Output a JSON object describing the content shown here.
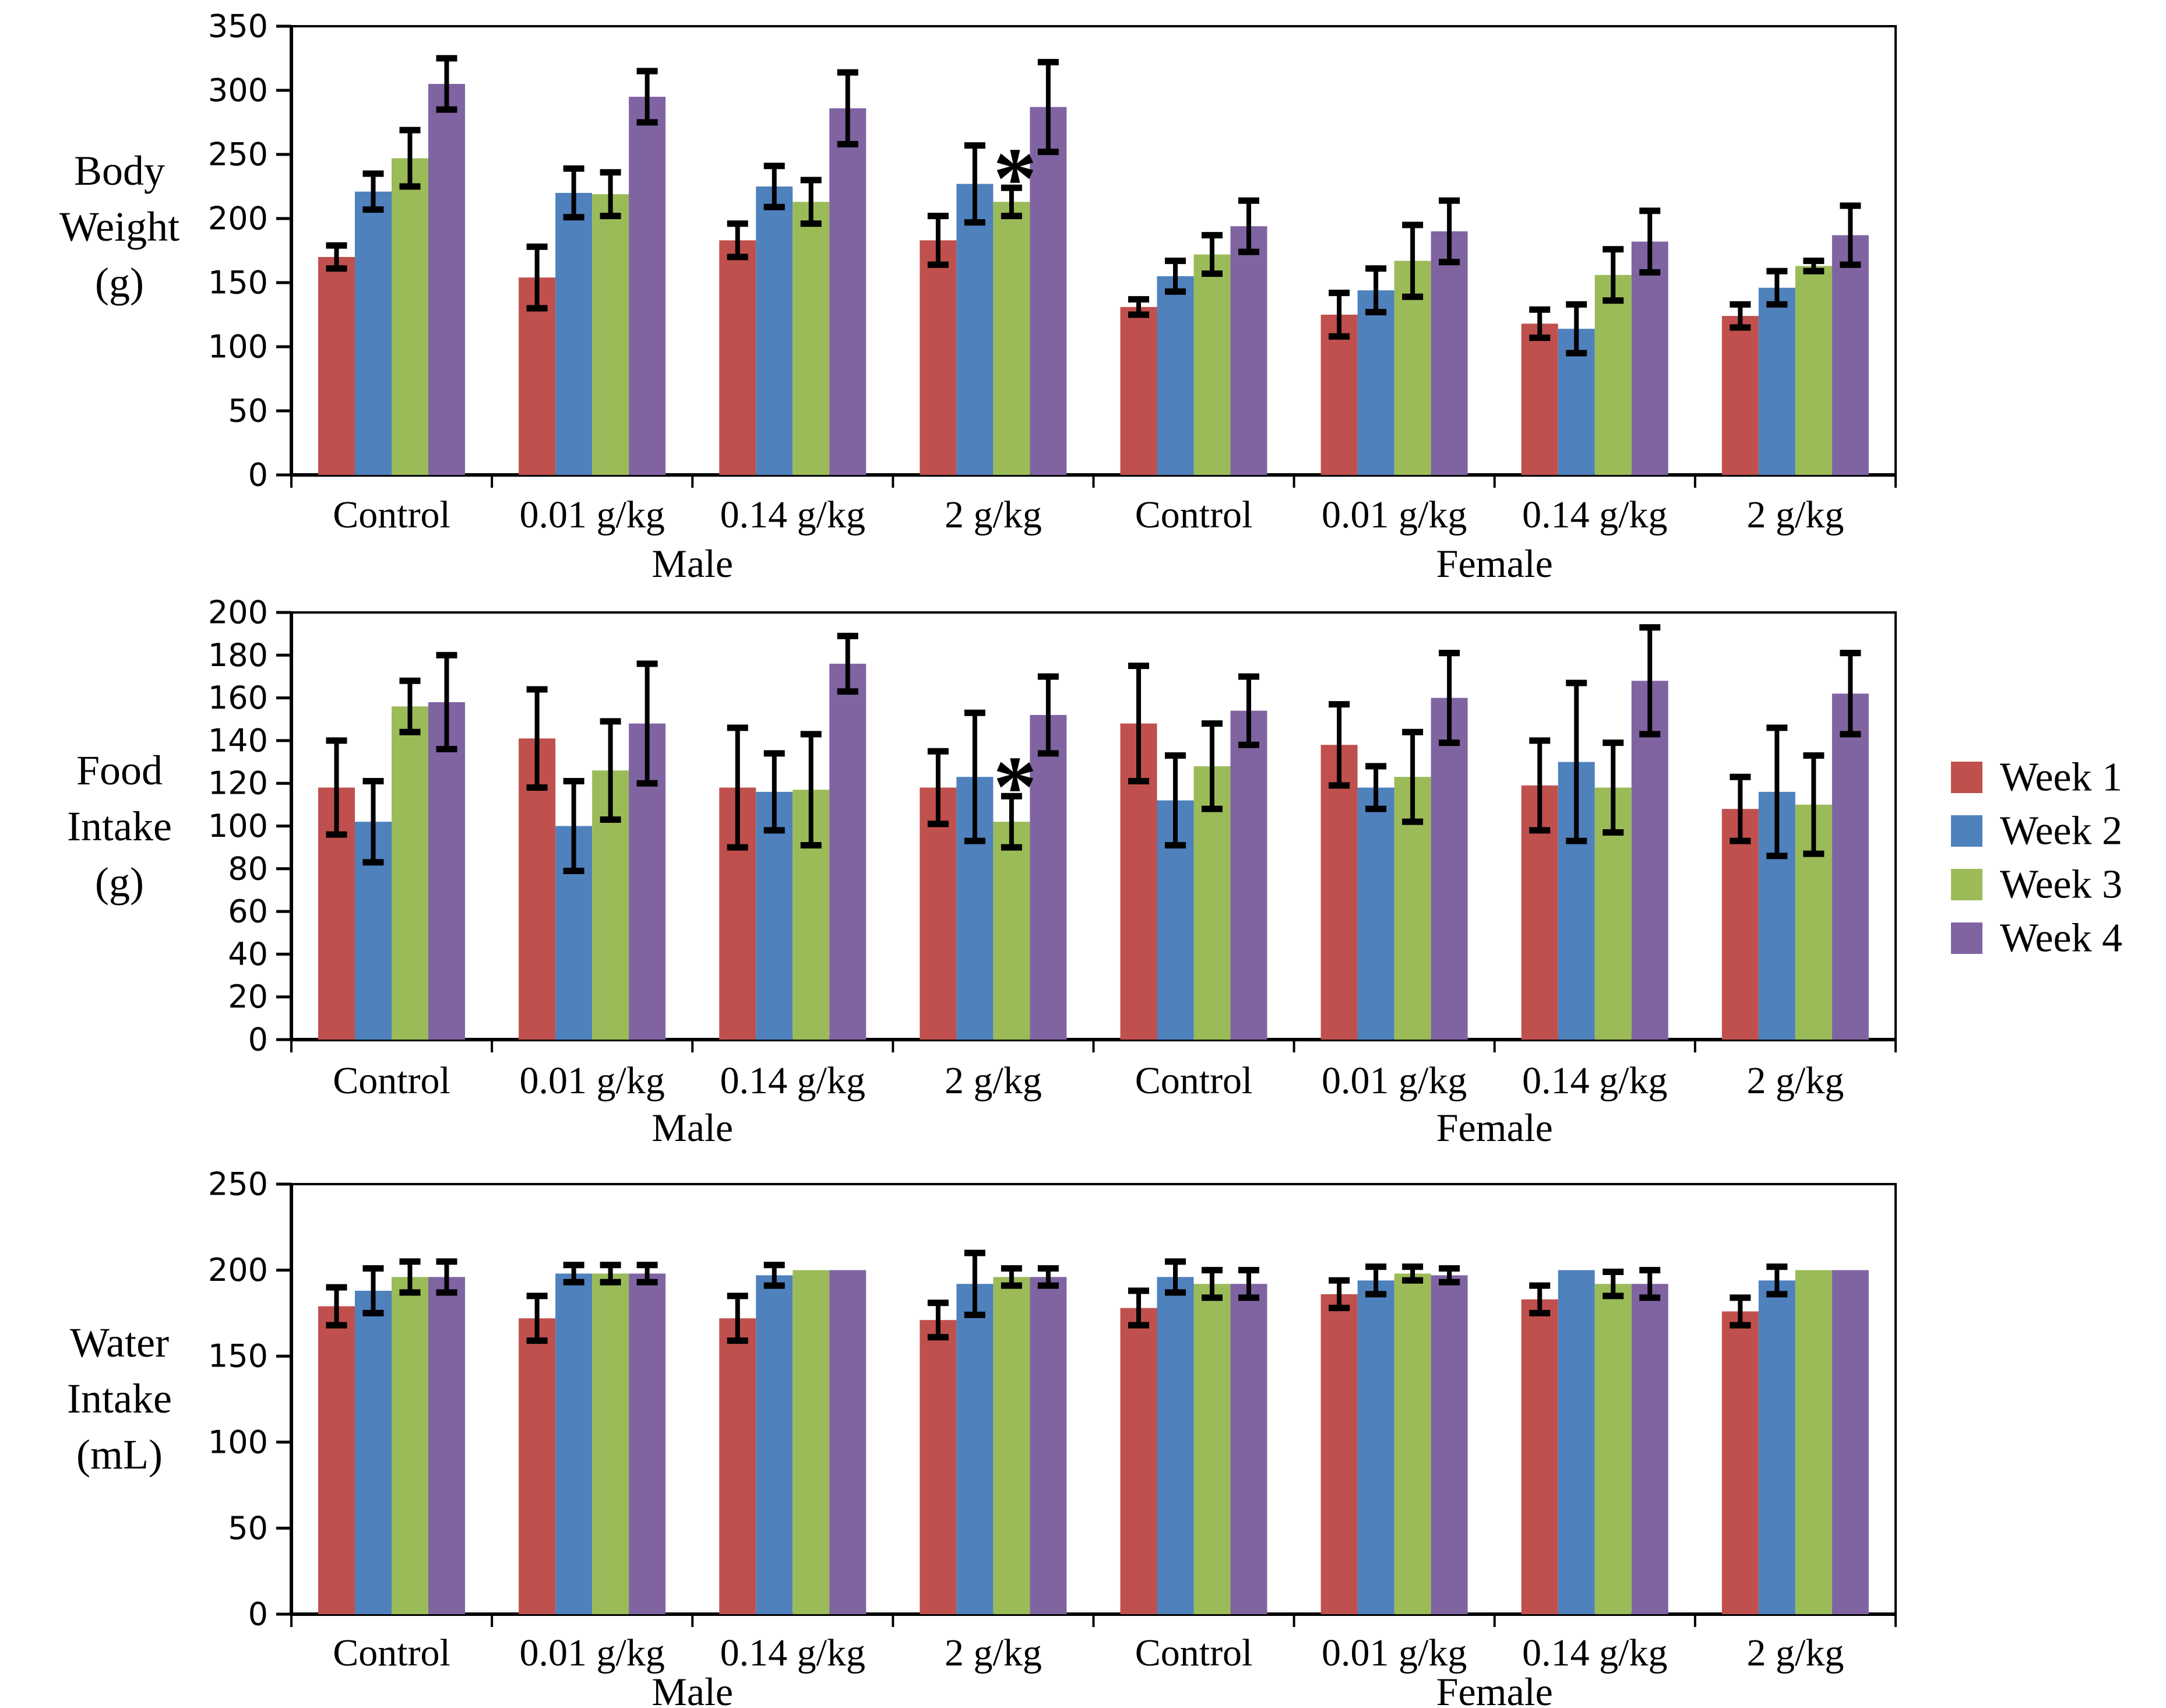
{
  "figure": {
    "background": "#ffffff",
    "axis_color": "#000000",
    "error_bar_color": "#000000"
  },
  "colors": {
    "Week 1": "#C0504D",
    "Week 2": "#4F81BD",
    "Week 3": "#9BBB59",
    "Week 4": "#8064A2"
  },
  "legend": {
    "position": "right-middle",
    "items": [
      {
        "label": "Week 1"
      },
      {
        "label": "Week 2"
      },
      {
        "label": "Week 3"
      },
      {
        "label": "Week 4"
      }
    ]
  },
  "chart_data": [
    {
      "type": "bar",
      "id": "body-weight",
      "ylabel_lines": [
        "Body",
        "Weight",
        "(g)"
      ],
      "ylim": [
        0,
        350
      ],
      "ytick_step": 50,
      "grid": false,
      "categories": [
        "Control",
        "0.01 g/kg",
        "0.14 g/kg",
        "2 g/kg",
        "Control",
        "0.01 g/kg",
        "0.14 g/kg",
        "2 g/kg"
      ],
      "sections": [
        {
          "label": "Male",
          "span": [
            0,
            3
          ]
        },
        {
          "label": "Female",
          "span": [
            4,
            7
          ]
        }
      ],
      "series": [
        {
          "name": "Week 1",
          "values": [
            170,
            154,
            183,
            183,
            131,
            125,
            118,
            124
          ],
          "errors": [
            9,
            24,
            13,
            19,
            6,
            17,
            11,
            9
          ]
        },
        {
          "name": "Week 2",
          "values": [
            221,
            220,
            225,
            227,
            155,
            144,
            114,
            146
          ],
          "errors": [
            14,
            19,
            16,
            30,
            12,
            17,
            19,
            13
          ]
        },
        {
          "name": "Week 3",
          "values": [
            247,
            219,
            213,
            213,
            172,
            167,
            156,
            163
          ],
          "errors": [
            22,
            17,
            17,
            11,
            15,
            28,
            20,
            4
          ]
        },
        {
          "name": "Week 4",
          "values": [
            305,
            295,
            286,
            287,
            194,
            190,
            182,
            187
          ],
          "errors": [
            20,
            20,
            28,
            35,
            20,
            24,
            24,
            23
          ]
        }
      ],
      "annotations": [
        {
          "text": "*",
          "group": 3,
          "series": 2
        }
      ]
    },
    {
      "type": "bar",
      "id": "food-intake",
      "ylabel_lines": [
        "Food",
        "Intake",
        "(g)"
      ],
      "ylim": [
        0,
        200
      ],
      "ytick_step": 20,
      "grid": false,
      "categories": [
        "Control",
        "0.01 g/kg",
        "0.14 g/kg",
        "2 g/kg",
        "Control",
        "0.01 g/kg",
        "0.14 g/kg",
        "2 g/kg"
      ],
      "sections": [
        {
          "label": "Male",
          "span": [
            0,
            3
          ]
        },
        {
          "label": "Female",
          "span": [
            4,
            7
          ]
        }
      ],
      "series": [
        {
          "name": "Week 1",
          "values": [
            118,
            141,
            118,
            118,
            148,
            138,
            119,
            108
          ],
          "errors": [
            22,
            23,
            28,
            17,
            27,
            19,
            21,
            15
          ]
        },
        {
          "name": "Week 2",
          "values": [
            102,
            100,
            116,
            123,
            112,
            118,
            130,
            116
          ],
          "errors": [
            19,
            21,
            18,
            30,
            21,
            10,
            37,
            30
          ]
        },
        {
          "name": "Week 3",
          "values": [
            156,
            126,
            117,
            102,
            128,
            123,
            118,
            110
          ],
          "errors": [
            12,
            23,
            26,
            12,
            20,
            21,
            21,
            23
          ]
        },
        {
          "name": "Week 4",
          "values": [
            158,
            148,
            176,
            152,
            154,
            160,
            168,
            162
          ],
          "errors": [
            22,
            28,
            13,
            18,
            16,
            21,
            25,
            19
          ]
        }
      ],
      "annotations": [
        {
          "text": "*",
          "group": 3,
          "series": 2
        }
      ]
    },
    {
      "type": "bar",
      "id": "water-intake",
      "ylabel_lines": [
        "Water",
        "Intake",
        "(mL)"
      ],
      "ylim": [
        0,
        250
      ],
      "ytick_step": 50,
      "grid": false,
      "categories": [
        "Control",
        "0.01 g/kg",
        "0.14 g/kg",
        "2 g/kg",
        "Control",
        "0.01 g/kg",
        "0.14 g/kg",
        "2 g/kg"
      ],
      "sections": [
        {
          "label": "Male",
          "span": [
            0,
            3
          ]
        },
        {
          "label": "Female",
          "span": [
            4,
            7
          ]
        }
      ],
      "series": [
        {
          "name": "Week 1",
          "values": [
            179,
            172,
            172,
            171,
            178,
            186,
            183,
            176
          ],
          "errors": [
            11,
            13,
            13,
            10,
            10,
            8,
            8,
            8
          ]
        },
        {
          "name": "Week 2",
          "values": [
            188,
            198,
            197,
            192,
            196,
            194,
            200,
            194
          ],
          "errors": [
            13,
            5,
            6,
            18,
            9,
            8,
            0,
            8
          ]
        },
        {
          "name": "Week 3",
          "values": [
            196,
            198,
            200,
            196,
            192,
            198,
            192,
            200
          ],
          "errors": [
            9,
            5,
            0,
            5,
            8,
            4,
            7,
            0
          ]
        },
        {
          "name": "Week 4",
          "values": [
            196,
            198,
            200,
            196,
            192,
            197,
            192,
            200
          ],
          "errors": [
            9,
            5,
            0,
            5,
            8,
            4,
            8,
            0
          ]
        }
      ],
      "annotations": []
    }
  ]
}
